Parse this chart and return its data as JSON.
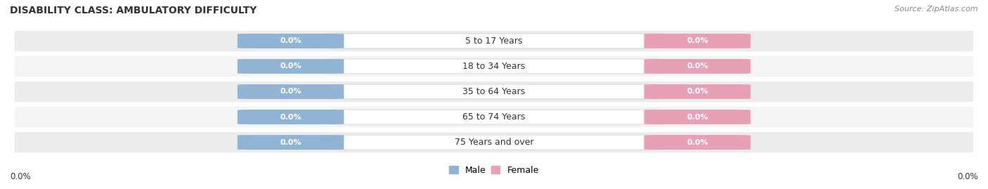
{
  "title": "DISABILITY CLASS: AMBULATORY DIFFICULTY",
  "source_text": "Source: ZipAtlas.com",
  "categories": [
    "5 to 17 Years",
    "18 to 34 Years",
    "35 to 64 Years",
    "65 to 74 Years",
    "75 Years and over"
  ],
  "male_values": [
    0.0,
    0.0,
    0.0,
    0.0,
    0.0
  ],
  "female_values": [
    0.0,
    0.0,
    0.0,
    0.0,
    0.0
  ],
  "male_color": "#92b4d4",
  "female_color": "#e8a0b4",
  "row_bg_colors": [
    "#ececec",
    "#f4f4f4"
  ],
  "cat_label_bg": "#ffffff",
  "label_color": "white",
  "cat_label_color": "#333333",
  "axis_label_left": "0.0%",
  "axis_label_right": "0.0%",
  "legend_male": "Male",
  "legend_female": "Female",
  "background_color": "#ffffff",
  "title_color": "#333333",
  "source_color": "#888888",
  "title_fontsize": 10,
  "source_fontsize": 8,
  "value_fontsize": 8,
  "cat_fontsize": 9,
  "axis_fontsize": 8.5,
  "legend_fontsize": 9
}
